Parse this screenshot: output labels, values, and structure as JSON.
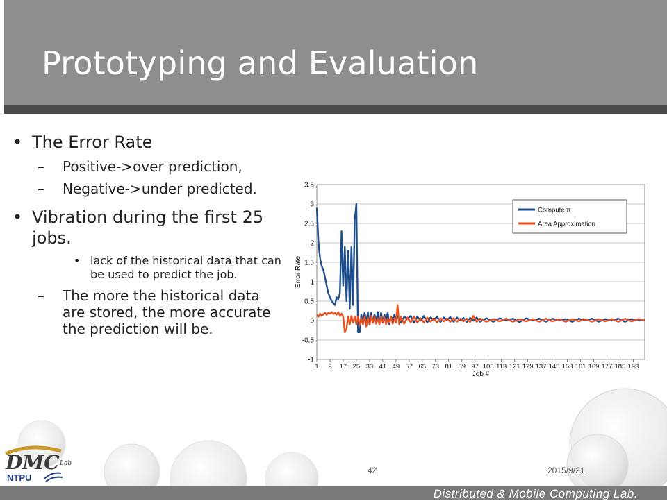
{
  "slide": {
    "title": "Prototyping and Evaluation",
    "bullets": {
      "b1": "The Error Rate",
      "b1_sub1": "Positive->over prediction,",
      "b1_sub2": "Negative->under predicted.",
      "b2": "Vibration during the first 25 jobs.",
      "b2_sub1": "lack of the historical data that can be used to predict the job.",
      "b2_sub2": "The more the historical data are stored, the more accurate the prediction will be."
    },
    "page_number": "42",
    "date": "2015/9/21",
    "footer_lab": "Distributed & Mobile Computing Lab.",
    "logo_text": "DMC",
    "logo_sub": "NTPU",
    "logo_small": "Lab",
    "bullet_glyph": "•",
    "dash_glyph": "–"
  },
  "chart_data": {
    "type": "line",
    "title": "",
    "xlabel": "Job #",
    "ylabel": "Error Rate",
    "ylim": [
      -1,
      3.5
    ],
    "yticks": [
      "3.5",
      "3",
      "2.5",
      "2",
      "1.5",
      "1",
      "0.5",
      "0",
      "-0.5",
      "-1"
    ],
    "xticks": [
      "1",
      "9",
      "17",
      "25",
      "33",
      "41",
      "49",
      "57",
      "65",
      "73",
      "81",
      "89",
      "97",
      "105",
      "113",
      "121",
      "129",
      "137",
      "145",
      "153",
      "161",
      "169",
      "177",
      "185",
      "193"
    ],
    "xrange": [
      1,
      200
    ],
    "grid": true,
    "legend_position": "top-right",
    "series": [
      {
        "name": "Compute π",
        "color": "#1f4e8c",
        "points": [
          [
            1,
            2.9
          ],
          [
            2,
            2.0
          ],
          [
            3,
            1.6
          ],
          [
            4,
            1.4
          ],
          [
            5,
            1.3
          ],
          [
            6,
            1.1
          ],
          [
            7,
            0.9
          ],
          [
            8,
            0.7
          ],
          [
            9,
            0.6
          ],
          [
            10,
            0.5
          ],
          [
            11,
            0.45
          ],
          [
            12,
            0.4
          ],
          [
            13,
            0.6
          ],
          [
            14,
            0.55
          ],
          [
            15,
            0.7
          ],
          [
            16,
            2.3
          ],
          [
            17,
            0.9
          ],
          [
            18,
            1.9
          ],
          [
            19,
            0.5
          ],
          [
            20,
            1.8
          ],
          [
            21,
            0.3
          ],
          [
            22,
            1.9
          ],
          [
            23,
            0.4
          ],
          [
            24,
            2.6
          ],
          [
            25,
            3.0
          ],
          [
            26,
            -0.3
          ],
          [
            27,
            -0.3
          ],
          [
            28,
            0.15
          ],
          [
            29,
            -0.1
          ],
          [
            30,
            0.2
          ],
          [
            31,
            -0.05
          ],
          [
            32,
            0.22
          ],
          [
            33,
            -0.1
          ],
          [
            34,
            0.2
          ],
          [
            35,
            -0.05
          ],
          [
            36,
            0.15
          ],
          [
            37,
            0.0
          ],
          [
            38,
            0.22
          ],
          [
            39,
            -0.1
          ],
          [
            40,
            0.2
          ],
          [
            41,
            -0.05
          ],
          [
            42,
            0.15
          ],
          [
            43,
            0.0
          ],
          [
            44,
            0.2
          ],
          [
            45,
            -0.1
          ],
          [
            46,
            0.1
          ],
          [
            47,
            0.05
          ],
          [
            48,
            0.15
          ],
          [
            49,
            0.0
          ],
          [
            50,
            0.12
          ],
          [
            52,
            -0.05
          ],
          [
            54,
            0.1
          ],
          [
            56,
            0.05
          ],
          [
            58,
            0.12
          ],
          [
            60,
            -0.05
          ],
          [
            62,
            0.1
          ],
          [
            64,
            0.0
          ],
          [
            66,
            0.12
          ],
          [
            68,
            -0.05
          ],
          [
            70,
            0.08
          ],
          [
            72,
            0.02
          ],
          [
            74,
            0.1
          ],
          [
            76,
            -0.04
          ],
          [
            78,
            0.08
          ],
          [
            80,
            0.02
          ],
          [
            82,
            0.09
          ],
          [
            84,
            -0.03
          ],
          [
            86,
            0.08
          ],
          [
            88,
            0.0
          ],
          [
            90,
            0.07
          ],
          [
            92,
            -0.04
          ],
          [
            94,
            0.07
          ],
          [
            96,
            0.0
          ],
          [
            98,
            0.08
          ],
          [
            100,
            -0.03
          ],
          [
            104,
            0.06
          ],
          [
            108,
            -0.03
          ],
          [
            112,
            0.06
          ],
          [
            116,
            0.0
          ],
          [
            120,
            0.05
          ],
          [
            124,
            -0.04
          ],
          [
            128,
            0.06
          ],
          [
            132,
            0.0
          ],
          [
            136,
            0.05
          ],
          [
            140,
            -0.03
          ],
          [
            144,
            0.05
          ],
          [
            148,
            0.0
          ],
          [
            152,
            0.04
          ],
          [
            156,
            -0.03
          ],
          [
            160,
            0.05
          ],
          [
            164,
            0.0
          ],
          [
            168,
            0.05
          ],
          [
            172,
            -0.03
          ],
          [
            176,
            0.04
          ],
          [
            180,
            0.0
          ],
          [
            184,
            0.05
          ],
          [
            188,
            -0.03
          ],
          [
            192,
            0.04
          ],
          [
            196,
            0.0
          ],
          [
            200,
            0.03
          ]
        ]
      },
      {
        "name": "Area Approximation",
        "color": "#e8501f",
        "points": [
          [
            1,
            0.15
          ],
          [
            2,
            0.1
          ],
          [
            3,
            0.18
          ],
          [
            4,
            0.12
          ],
          [
            5,
            0.16
          ],
          [
            6,
            0.2
          ],
          [
            7,
            0.15
          ],
          [
            8,
            0.2
          ],
          [
            9,
            0.18
          ],
          [
            10,
            0.22
          ],
          [
            11,
            0.17
          ],
          [
            12,
            0.2
          ],
          [
            13,
            0.15
          ],
          [
            14,
            0.22
          ],
          [
            15,
            0.12
          ],
          [
            16,
            0.18
          ],
          [
            17,
            0.1
          ],
          [
            18,
            -0.3
          ],
          [
            19,
            -0.2
          ],
          [
            20,
            0.1
          ],
          [
            21,
            -0.1
          ],
          [
            22,
            0.12
          ],
          [
            23,
            -0.05
          ],
          [
            24,
            0.1
          ],
          [
            25,
            -0.1
          ],
          [
            26,
            0.1
          ],
          [
            27,
            -0.12
          ],
          [
            28,
            0.05
          ],
          [
            29,
            -0.1
          ],
          [
            30,
            0.1
          ],
          [
            31,
            -0.15
          ],
          [
            32,
            0.08
          ],
          [
            33,
            -0.1
          ],
          [
            34,
            0.12
          ],
          [
            35,
            -0.05
          ],
          [
            36,
            0.1
          ],
          [
            37,
            -0.08
          ],
          [
            38,
            0.05
          ],
          [
            39,
            -0.1
          ],
          [
            40,
            0.1
          ],
          [
            41,
            -0.05
          ],
          [
            42,
            0.08
          ],
          [
            43,
            -0.1
          ],
          [
            44,
            0.05
          ],
          [
            45,
            -0.05
          ],
          [
            46,
            0.1
          ],
          [
            47,
            -0.08
          ],
          [
            48,
            0.05
          ],
          [
            49,
            -0.05
          ],
          [
            50,
            0.4
          ],
          [
            51,
            -0.1
          ],
          [
            52,
            0.1
          ],
          [
            54,
            -0.08
          ],
          [
            56,
            0.08
          ],
          [
            58,
            -0.05
          ],
          [
            60,
            0.1
          ],
          [
            62,
            -0.05
          ],
          [
            64,
            0.06
          ],
          [
            66,
            -0.05
          ],
          [
            68,
            0.08
          ],
          [
            70,
            -0.03
          ],
          [
            72,
            0.06
          ],
          [
            74,
            -0.05
          ],
          [
            76,
            0.06
          ],
          [
            78,
            -0.02
          ],
          [
            80,
            0.05
          ],
          [
            82,
            -0.03
          ],
          [
            84,
            0.06
          ],
          [
            86,
            -0.03
          ],
          [
            88,
            0.05
          ],
          [
            90,
            -0.02
          ],
          [
            92,
            0.05
          ],
          [
            94,
            -0.04
          ],
          [
            96,
            0.12
          ],
          [
            98,
            -0.03
          ],
          [
            100,
            0.05
          ],
          [
            104,
            -0.03
          ],
          [
            108,
            0.04
          ],
          [
            112,
            -0.02
          ],
          [
            116,
            0.05
          ],
          [
            120,
            -0.03
          ],
          [
            124,
            0.04
          ],
          [
            128,
            -0.02
          ],
          [
            132,
            0.04
          ],
          [
            136,
            -0.03
          ],
          [
            140,
            0.05
          ],
          [
            144,
            -0.02
          ],
          [
            148,
            0.04
          ],
          [
            152,
            -0.03
          ],
          [
            156,
            0.04
          ],
          [
            160,
            -0.02
          ],
          [
            164,
            0.04
          ],
          [
            168,
            -0.03
          ],
          [
            172,
            0.04
          ],
          [
            176,
            -0.02
          ],
          [
            180,
            0.04
          ],
          [
            184,
            -0.03
          ],
          [
            188,
            0.05
          ],
          [
            192,
            -0.02
          ],
          [
            196,
            0.04
          ],
          [
            200,
            0.02
          ]
        ]
      }
    ]
  }
}
